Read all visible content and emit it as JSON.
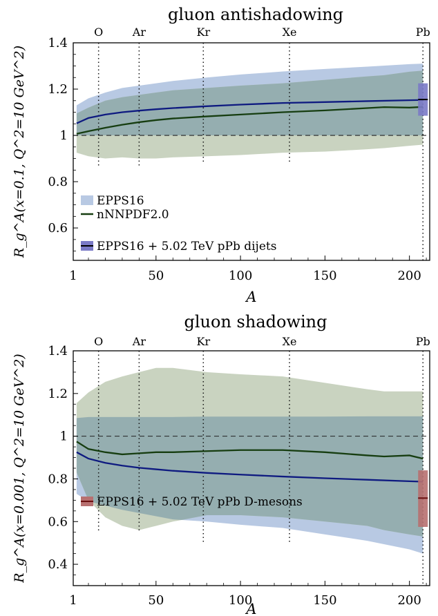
{
  "charts": [
    {
      "title": "gluon antishadowing",
      "ylabel": "R_g^A(x=0.1, Q^2=10 GeV^2)",
      "xlabel": "A",
      "xticks": [
        "1",
        "50",
        "100",
        "150",
        "200"
      ],
      "yticks": [
        "0.6",
        "0.8",
        "1",
        "1.2",
        "1.4"
      ],
      "nuclei": [
        "O",
        "Ar",
        "Kr",
        "Xe",
        "Pb"
      ],
      "legend": [
        "EPPS16",
        "nNNPDF2.0",
        "EPPS16 + 5.02 TeV pPb dijets"
      ]
    },
    {
      "title": "gluon shadowing",
      "ylabel": "R_g^A(x=0.001, Q^2=10 GeV^2)",
      "xlabel": "A",
      "xticks": [
        "1",
        "50",
        "100",
        "150",
        "200"
      ],
      "yticks": [
        "0.4",
        "0.6",
        "0.8",
        "1",
        "1.2",
        "1.4"
      ],
      "nuclei": [
        "O",
        "Ar",
        "Kr",
        "Xe",
        "Pb"
      ],
      "legend": [
        "EPPS16 + 5.02 TeV pPb D-mesons"
      ]
    }
  ],
  "chart_data": [
    {
      "type": "area",
      "title": "gluon antishadowing",
      "xlabel": "A",
      "ylabel": "R_g^A(x=0.1, Q^2=10 GeV^2)",
      "xlim": [
        1,
        212
      ],
      "ylim": [
        0.46,
        1.4
      ],
      "grid": false,
      "reference_line": 1.0,
      "nuclei_markers": {
        "O": 16,
        "Ar": 40,
        "Kr": 78,
        "Xe": 129,
        "Pb": 208
      },
      "colors": {
        "epps16_band": "#b8c9e3",
        "epps16_line": "#0e1a80",
        "nnpdf_band": "#c9d3c0",
        "nnpdf_line": "#163d10",
        "overlap": "#95aeb0",
        "dijets_band": "#7a7ac6"
      },
      "series": [
        {
          "name": "EPPS16",
          "x": [
            3,
            10,
            20,
            30,
            40,
            50,
            60,
            80,
            100,
            125,
            150,
            175,
            200,
            208
          ],
          "central": [
            1.052,
            1.075,
            1.09,
            1.1,
            1.107,
            1.113,
            1.118,
            1.126,
            1.133,
            1.14,
            1.144,
            1.148,
            1.152,
            1.153
          ],
          "upper": [
            1.13,
            1.16,
            1.185,
            1.205,
            1.215,
            1.225,
            1.235,
            1.25,
            1.263,
            1.276,
            1.287,
            1.297,
            1.308,
            1.31
          ],
          "lower": [
            1.0,
            1.0,
            1.0,
            1.0,
            1.0,
            1.0,
            1.0,
            1.0,
            1.0,
            1.0,
            1.0,
            1.0,
            1.0,
            1.0
          ]
        },
        {
          "name": "nNNPDF2.0",
          "x": [
            3,
            10,
            20,
            30,
            40,
            50,
            60,
            80,
            100,
            125,
            150,
            175,
            185,
            200,
            208
          ],
          "central": [
            1.007,
            1.018,
            1.033,
            1.046,
            1.057,
            1.066,
            1.073,
            1.082,
            1.09,
            1.1,
            1.108,
            1.118,
            1.122,
            1.12,
            1.123
          ],
          "upper": [
            1.095,
            1.12,
            1.15,
            1.165,
            1.175,
            1.185,
            1.195,
            1.205,
            1.215,
            1.225,
            1.24,
            1.255,
            1.26,
            1.275,
            1.28
          ],
          "lower": [
            0.925,
            0.91,
            0.9,
            0.905,
            0.9,
            0.9,
            0.905,
            0.91,
            0.915,
            0.925,
            0.93,
            0.94,
            0.945,
            0.955,
            0.96
          ]
        },
        {
          "name": "EPPS16 + 5.02 TeV pPb dijets",
          "x": [
            208
          ],
          "central": [
            1.155
          ],
          "upper": [
            1.225
          ],
          "lower": [
            1.085
          ]
        }
      ]
    },
    {
      "type": "area",
      "title": "gluon shadowing",
      "xlabel": "A",
      "ylabel": "R_g^A(x=0.001, Q^2=10 GeV^2)",
      "xlim": [
        1,
        212
      ],
      "ylim": [
        0.3,
        1.4
      ],
      "grid": false,
      "reference_line": 1.0,
      "nuclei_markers": {
        "O": 16,
        "Ar": 40,
        "Kr": 78,
        "Xe": 129,
        "Pb": 208
      },
      "colors": {
        "epps16_band": "#b8c9e3",
        "epps16_line": "#0e1a80",
        "nnpdf_band": "#c9d3c0",
        "nnpdf_line": "#163d10",
        "overlap": "#95aeb0",
        "dmesons_band": "#b77070"
      },
      "series": [
        {
          "name": "EPPS16",
          "x": [
            3,
            10,
            20,
            30,
            40,
            50,
            60,
            80,
            100,
            125,
            150,
            175,
            200,
            208
          ],
          "central": [
            0.925,
            0.895,
            0.875,
            0.862,
            0.852,
            0.845,
            0.838,
            0.828,
            0.82,
            0.811,
            0.803,
            0.796,
            0.789,
            0.787
          ],
          "upper": [
            1.085,
            1.09,
            1.09,
            1.09,
            1.09,
            1.09,
            1.09,
            1.092,
            1.092,
            1.092,
            1.092,
            1.093,
            1.093,
            1.093
          ],
          "lower": [
            0.73,
            0.695,
            0.675,
            0.655,
            0.64,
            0.625,
            0.61,
            0.6,
            0.585,
            0.57,
            0.54,
            0.51,
            0.47,
            0.45
          ]
        },
        {
          "name": "nNNPDF2.0",
          "x": [
            3,
            10,
            20,
            30,
            40,
            50,
            60,
            80,
            100,
            125,
            150,
            175,
            185,
            200,
            208
          ],
          "central": [
            0.975,
            0.94,
            0.925,
            0.915,
            0.92,
            0.925,
            0.925,
            0.93,
            0.935,
            0.935,
            0.925,
            0.91,
            0.905,
            0.91,
            0.895
          ],
          "upper": [
            1.155,
            1.205,
            1.255,
            1.28,
            1.3,
            1.32,
            1.32,
            1.3,
            1.29,
            1.28,
            1.25,
            1.22,
            1.21,
            1.21,
            1.21
          ],
          "lower": [
            0.83,
            0.7,
            0.62,
            0.58,
            0.56,
            0.58,
            0.6,
            0.63,
            0.63,
            0.62,
            0.6,
            0.58,
            0.56,
            0.54,
            0.53
          ]
        },
        {
          "name": "EPPS16 + 5.02 TeV pPb D-mesons",
          "x": [
            208
          ],
          "central": [
            0.71
          ],
          "upper": [
            0.84
          ],
          "lower": [
            0.575
          ]
        }
      ]
    }
  ]
}
